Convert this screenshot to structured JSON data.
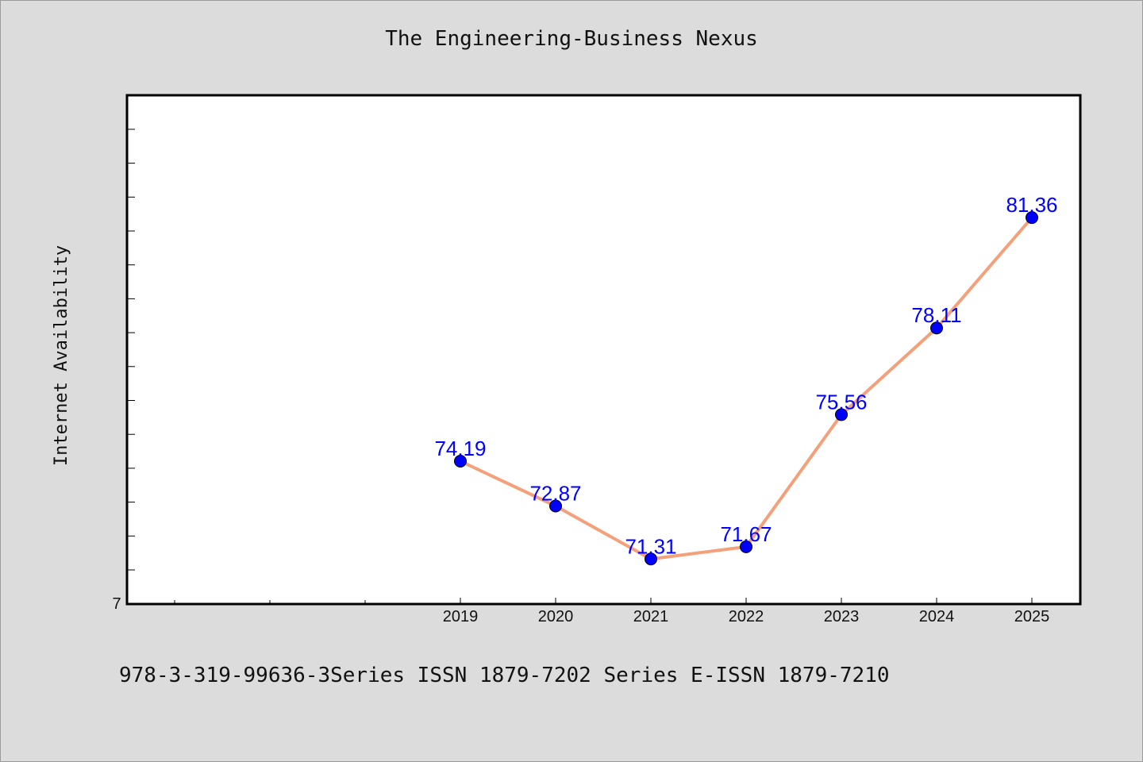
{
  "chart_data": {
    "type": "line",
    "title": "The Engineering-Business Nexus",
    "xlabel": "",
    "ylabel": "Internet Availability",
    "x": [
      "2019",
      "2020",
      "2021",
      "2022",
      "2023",
      "2024",
      "2025"
    ],
    "values": [
      74.19,
      72.87,
      71.31,
      71.67,
      75.56,
      78.11,
      81.36
    ],
    "data_labels": [
      "74.19",
      "72.87",
      "71.31",
      "71.67",
      "75.56",
      "78.11",
      "81.36"
    ],
    "y_tick_label": "7",
    "line_color": "#f4a07a",
    "marker_color": "#0000ff",
    "label_color": "#0000ff",
    "grid": false,
    "legend": "none"
  },
  "footer": "978-3-319-99636-3Series ISSN 1879-7202 Series E-ISSN 1879-7210"
}
